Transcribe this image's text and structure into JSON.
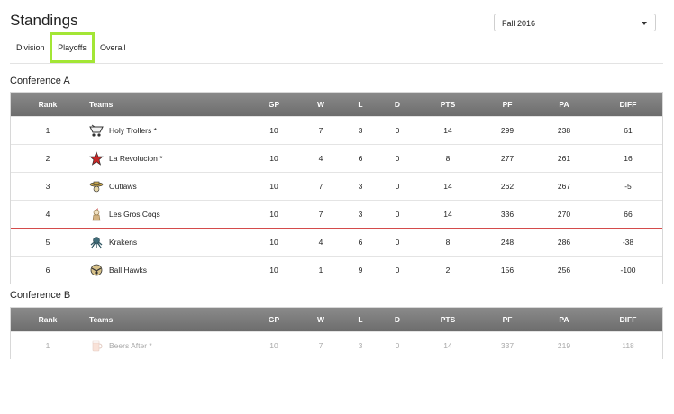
{
  "page": {
    "title": "Standings"
  },
  "season_select": {
    "value": "Fall 2016"
  },
  "tabs": [
    {
      "label": "Division"
    },
    {
      "label": "Playoffs",
      "active": true
    },
    {
      "label": "Overall"
    }
  ],
  "columns": {
    "rank": "Rank",
    "teams": "Teams",
    "gp": "GP",
    "w": "W",
    "l": "L",
    "d": "D",
    "pts": "PTS",
    "pf": "PF",
    "pa": "PA",
    "diff": "DIFF"
  },
  "conferences": [
    {
      "name": "Conference A",
      "rows": [
        {
          "rank": "1",
          "team": "Holy Trollers *",
          "logo": "trolley-logo-icon",
          "gp": "10",
          "w": "7",
          "l": "3",
          "d": "0",
          "pts": "14",
          "pf": "299",
          "pa": "238",
          "diff": "61"
        },
        {
          "rank": "2",
          "team": "La Revolucion *",
          "logo": "red-star-logo-icon",
          "gp": "10",
          "w": "4",
          "l": "6",
          "d": "0",
          "pts": "8",
          "pf": "277",
          "pa": "261",
          "diff": "16"
        },
        {
          "rank": "3",
          "team": "Outlaws",
          "logo": "outlaw-logo-icon",
          "gp": "10",
          "w": "7",
          "l": "3",
          "d": "0",
          "pts": "14",
          "pf": "262",
          "pa": "267",
          "diff": "-5"
        },
        {
          "rank": "4",
          "team": "Les Gros Coqs",
          "logo": "rooster-logo-icon",
          "gp": "10",
          "w": "7",
          "l": "3",
          "d": "0",
          "pts": "14",
          "pf": "336",
          "pa": "270",
          "diff": "66"
        },
        {
          "rank": "5",
          "team": "Krakens",
          "logo": "kraken-logo-icon",
          "gp": "10",
          "w": "4",
          "l": "6",
          "d": "0",
          "pts": "8",
          "pf": "248",
          "pa": "286",
          "diff": "-38"
        },
        {
          "rank": "6",
          "team": "Ball Hawks",
          "logo": "hawk-logo-icon",
          "gp": "10",
          "w": "1",
          "l": "9",
          "d": "0",
          "pts": "2",
          "pf": "156",
          "pa": "256",
          "diff": "-100"
        }
      ]
    },
    {
      "name": "Conference B",
      "rows": [
        {
          "rank": "1",
          "team": "Beers After *",
          "logo": "beer-mug-logo-icon",
          "gp": "10",
          "w": "7",
          "l": "3",
          "d": "0",
          "pts": "14",
          "pf": "337",
          "pa": "219",
          "diff": "118"
        }
      ]
    }
  ],
  "colors": {
    "header_bg": "#7a7a7a",
    "playoff_cutoff": "#d44b4b",
    "active_tab_border": "#a3e635"
  }
}
